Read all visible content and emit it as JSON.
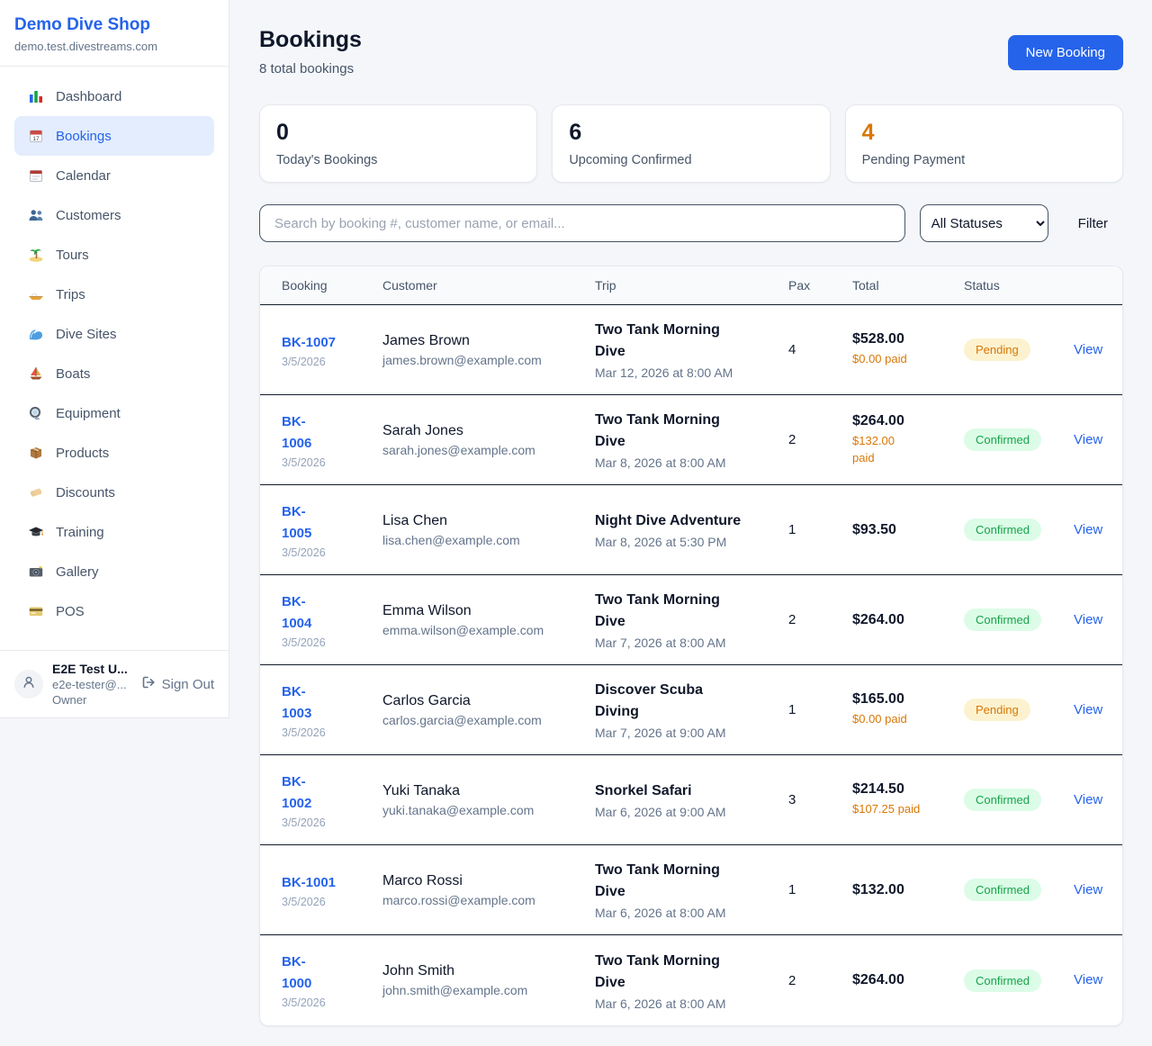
{
  "app": {
    "shop_name": "Demo Dive Shop",
    "shop_domain": "demo.test.divestreams.com"
  },
  "sidebar": {
    "items": [
      {
        "key": "dashboard",
        "label": "Dashboard",
        "icon": "bar-chart",
        "active": false
      },
      {
        "key": "bookings",
        "label": "Bookings",
        "icon": "tear-off-calendar",
        "active": true
      },
      {
        "key": "calendar",
        "label": "Calendar",
        "icon": "calendar",
        "active": false
      },
      {
        "key": "customers",
        "label": "Customers",
        "icon": "people",
        "active": false
      },
      {
        "key": "tours",
        "label": "Tours",
        "icon": "island",
        "active": false
      },
      {
        "key": "trips",
        "label": "Trips",
        "icon": "speedboat",
        "active": false
      },
      {
        "key": "dive-sites",
        "label": "Dive Sites",
        "icon": "wave",
        "active": false
      },
      {
        "key": "boats",
        "label": "Boats",
        "icon": "sailboat",
        "active": false
      },
      {
        "key": "equipment",
        "label": "Equipment",
        "icon": "diving-mask",
        "active": false
      },
      {
        "key": "products",
        "label": "Products",
        "icon": "package",
        "active": false
      },
      {
        "key": "discounts",
        "label": "Discounts",
        "icon": "tag",
        "active": false
      },
      {
        "key": "training",
        "label": "Training",
        "icon": "graduation-cap",
        "active": false
      },
      {
        "key": "gallery",
        "label": "Gallery",
        "icon": "camera",
        "active": false
      },
      {
        "key": "pos",
        "label": "POS",
        "icon": "credit-card",
        "active": false
      }
    ],
    "user": {
      "name": "E2E Test U...",
      "email": "e2e-tester@...",
      "role": "Owner",
      "sign_out_label": "Sign Out"
    }
  },
  "header": {
    "title": "Bookings",
    "subtitle": "8 total bookings",
    "new_booking_label": "New Booking"
  },
  "stats": [
    {
      "key": "todays-bookings",
      "value": "0",
      "label": "Today's Bookings",
      "value_color": "#0f172a"
    },
    {
      "key": "upcoming-confirmed",
      "value": "6",
      "label": "Upcoming Confirmed",
      "value_color": "#0f172a"
    },
    {
      "key": "pending-payment",
      "value": "4",
      "label": "Pending Payment",
      "value_color": "#d97706"
    }
  ],
  "filters": {
    "search_placeholder": "Search by booking #, customer name, or email...",
    "status_selected": "All Statuses",
    "filter_label": "Filter"
  },
  "table": {
    "columns": [
      "Booking",
      "Customer",
      "Trip",
      "Pax",
      "Total",
      "Status"
    ],
    "view_label": "View",
    "rows": [
      {
        "id": "BK-1007",
        "date": "3/5/2026",
        "customer": "James Brown",
        "email": "james.brown@example.com",
        "trip": "Two Tank Morning Dive",
        "trip_time": "Mar 12, 2026 at 8:00 AM",
        "pax": "4",
        "total": "$528.00",
        "paid": "$0.00 paid",
        "status": "Pending",
        "status_type": "pending"
      },
      {
        "id": "BK-\n1006",
        "date": "3/5/2026",
        "customer": "Sarah Jones",
        "email": "sarah.jones@example.com",
        "trip": "Two Tank Morning Dive",
        "trip_time": "Mar 8, 2026 at 8:00 AM",
        "pax": "2",
        "total": "$264.00",
        "paid": "$132.00\npaid",
        "status": "Confirmed",
        "status_type": "confirmed"
      },
      {
        "id": "BK-\n1005",
        "date": "3/5/2026",
        "customer": "Lisa Chen",
        "email": "lisa.chen@example.com",
        "trip": "Night Dive Adventure",
        "trip_time": "Mar 8, 2026 at 5:30 PM",
        "pax": "1",
        "total": "$93.50",
        "paid": "",
        "status": "Confirmed",
        "status_type": "confirmed"
      },
      {
        "id": "BK-\n1004",
        "date": "3/5/2026",
        "customer": "Emma Wilson",
        "email": "emma.wilson@example.com",
        "trip": "Two Tank Morning Dive",
        "trip_time": "Mar 7, 2026 at 8:00 AM",
        "pax": "2",
        "total": "$264.00",
        "paid": "",
        "status": "Confirmed",
        "status_type": "confirmed"
      },
      {
        "id": "BK-\n1003",
        "date": "3/5/2026",
        "customer": "Carlos Garcia",
        "email": "carlos.garcia@example.com",
        "trip": "Discover Scuba Diving",
        "trip_time": "Mar 7, 2026 at 9:00 AM",
        "pax": "1",
        "total": "$165.00",
        "paid": "$0.00 paid",
        "status": "Pending",
        "status_type": "pending"
      },
      {
        "id": "BK-\n1002",
        "date": "3/5/2026",
        "customer": "Yuki Tanaka",
        "email": "yuki.tanaka@example.com",
        "trip": "Snorkel Safari",
        "trip_time": "Mar 6, 2026 at 9:00 AM",
        "pax": "3",
        "total": "$214.50",
        "paid": "$107.25 paid",
        "status": "Confirmed",
        "status_type": "confirmed"
      },
      {
        "id": "BK-1001",
        "date": "3/5/2026",
        "customer": "Marco Rossi",
        "email": "marco.rossi@example.com",
        "trip": "Two Tank Morning Dive",
        "trip_time": "Mar 6, 2026 at 8:00 AM",
        "pax": "1",
        "total": "$132.00",
        "paid": "",
        "status": "Confirmed",
        "status_type": "confirmed"
      },
      {
        "id": "BK-\n1000",
        "date": "3/5/2026",
        "customer": "John Smith",
        "email": "john.smith@example.com",
        "trip": "Two Tank Morning Dive",
        "trip_time": "Mar 6, 2026 at 8:00 AM",
        "pax": "2",
        "total": "$264.00",
        "paid": "",
        "status": "Confirmed",
        "status_type": "confirmed"
      }
    ]
  },
  "colors": {
    "brand_blue": "#2563eb",
    "pending_text": "#d97706",
    "pending_bg": "#fdf2cf",
    "confirmed_text": "#16a34a",
    "confirmed_bg": "#dcfce7",
    "link_blue": "#2563eb",
    "row_border": "#131c2b",
    "page_bg": "#f4f6f9"
  }
}
